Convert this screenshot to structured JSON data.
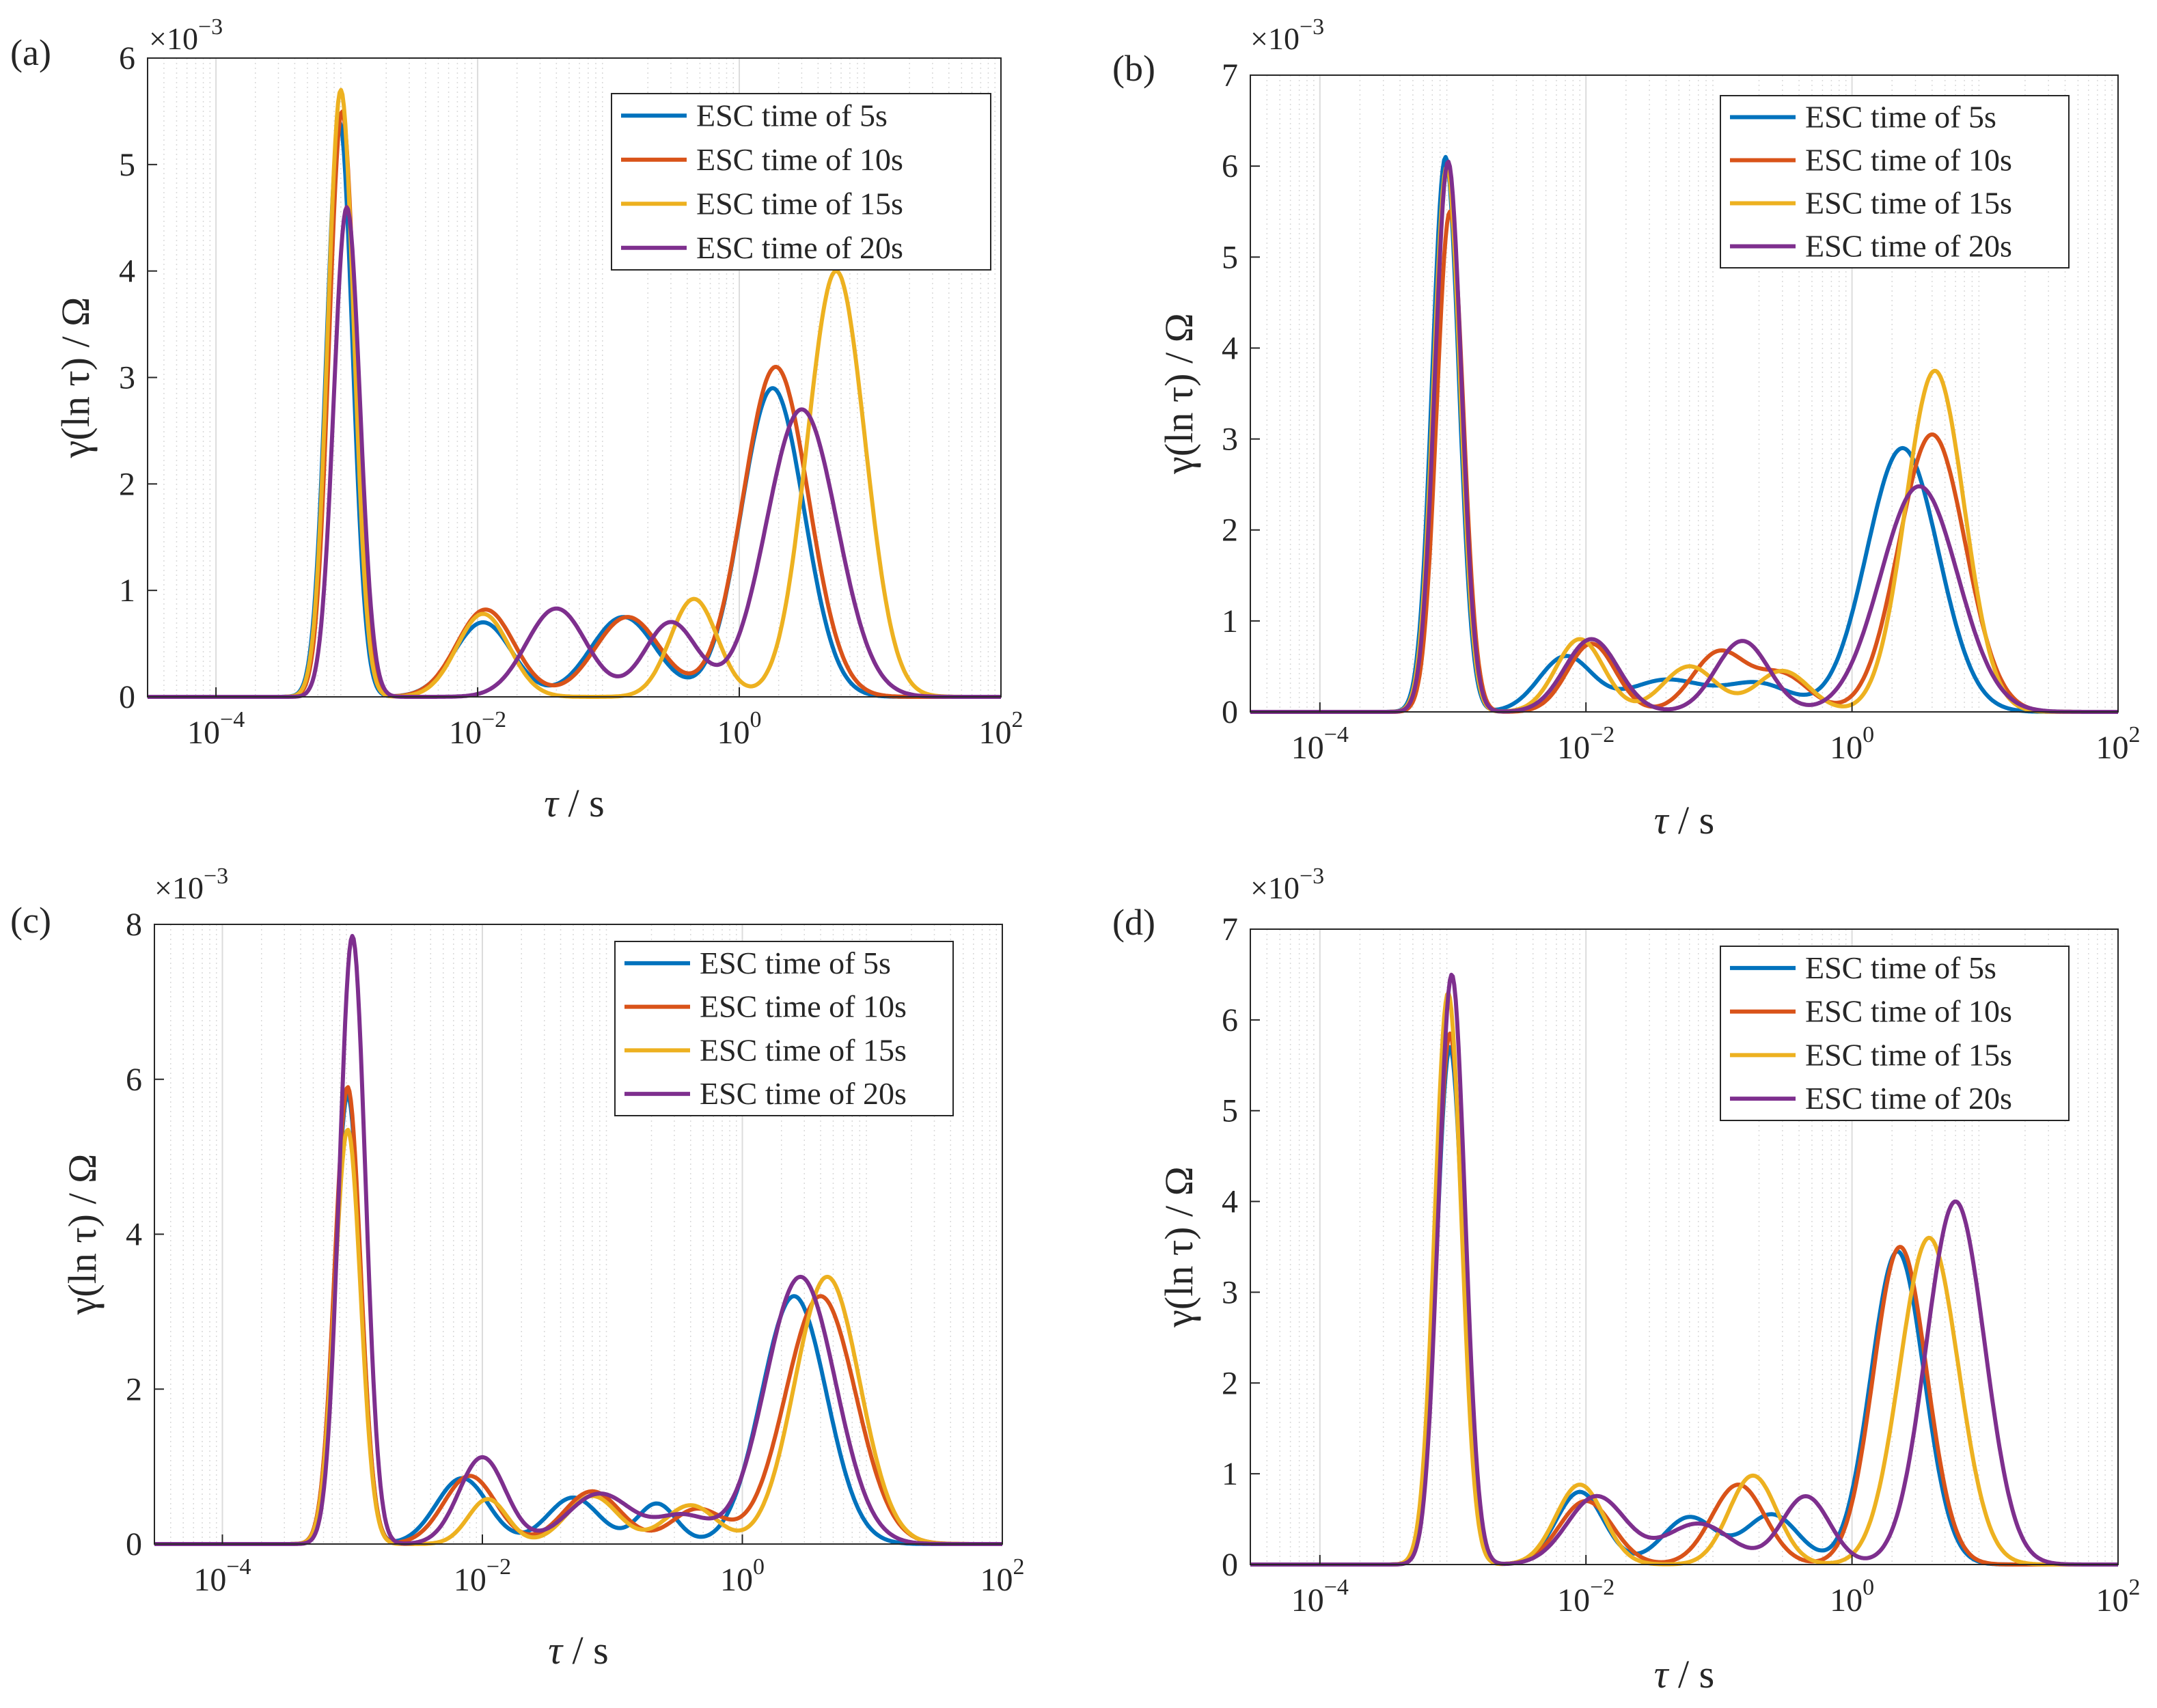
{
  "figure": {
    "panels_order": [
      "a",
      "b",
      "c",
      "d"
    ]
  },
  "chart_data": [
    {
      "panel_label": "(a)",
      "type": "line",
      "xscale": "log",
      "xlim": [
        3e-05,
        100
      ],
      "ylim": [
        0,
        6
      ],
      "yticks": [
        0,
        1,
        2,
        3,
        4,
        5,
        6
      ],
      "ytick_labels": [
        "0",
        "1",
        "2",
        "3",
        "4",
        "5",
        "6"
      ],
      "xticks": [
        0.0001,
        0.01,
        1,
        100
      ],
      "xtick_bases": [
        "10",
        "10",
        "10",
        "10"
      ],
      "xtick_exps": [
        "−4",
        "−2",
        "0",
        "2"
      ],
      "yscale_multiplier": "×10",
      "yscale_exp": "−3",
      "xlabel_var": "τ",
      "xlabel_unit": " / s",
      "ylabel": "γ(ln τ) / Ω",
      "grid": true,
      "legend_position": "top-right",
      "series": [
        {
          "name": "ESC time of 5s",
          "color": "#0072BD",
          "peaks": [
            [
              0.00088,
              5.4,
              0.1
            ],
            [
              0.011,
              0.7,
              0.22
            ],
            [
              0.13,
              0.75,
              0.25
            ],
            [
              1.8,
              2.9,
              0.24
            ]
          ]
        },
        {
          "name": "ESC time of 10s",
          "color": "#D95319",
          "peaks": [
            [
              0.00092,
              5.5,
              0.1
            ],
            [
              0.0115,
              0.82,
              0.22
            ],
            [
              0.14,
              0.75,
              0.25
            ],
            [
              1.9,
              3.1,
              0.25
            ]
          ]
        },
        {
          "name": "ESC time of 15s",
          "color": "#EDB120",
          "peaks": [
            [
              0.0009,
              5.7,
              0.1
            ],
            [
              0.011,
              0.78,
              0.2
            ],
            [
              0.45,
              0.92,
              0.18
            ],
            [
              5.5,
              4.0,
              0.22
            ]
          ]
        },
        {
          "name": "ESC time of 20s",
          "color": "#7E2F8E",
          "peaks": [
            [
              0.001,
              4.6,
              0.1
            ],
            [
              0.04,
              0.83,
              0.23
            ],
            [
              0.3,
              0.7,
              0.2
            ],
            [
              3.0,
              2.7,
              0.27
            ]
          ]
        }
      ]
    },
    {
      "panel_label": "(b)",
      "type": "line",
      "xscale": "log",
      "xlim": [
        3e-05,
        100
      ],
      "ylim": [
        0,
        7
      ],
      "yticks": [
        0,
        1,
        2,
        3,
        4,
        5,
        6,
        7
      ],
      "ytick_labels": [
        "0",
        "1",
        "2",
        "3",
        "4",
        "5",
        "6",
        "7"
      ],
      "xticks": [
        0.0001,
        0.01,
        1,
        100
      ],
      "xtick_bases": [
        "10",
        "10",
        "10",
        "10"
      ],
      "xtick_exps": [
        "−4",
        "−2",
        "0",
        "2"
      ],
      "yscale_multiplier": "×10",
      "yscale_exp": "−3",
      "xlabel_var": "τ",
      "xlabel_unit": " / s",
      "ylabel": "γ(ln τ) / Ω",
      "grid": true,
      "legend_position": "top-right",
      "series": [
        {
          "name": "ESC time of 5s",
          "color": "#0072BD",
          "peaks": [
            [
              0.00088,
              6.1,
              0.1
            ],
            [
              0.007,
              0.6,
              0.2
            ],
            [
              0.04,
              0.35,
              0.3
            ],
            [
              0.2,
              0.3,
              0.25
            ],
            [
              2.4,
              2.9,
              0.27
            ]
          ]
        },
        {
          "name": "ESC time of 10s",
          "color": "#D95319",
          "peaks": [
            [
              0.00095,
              5.5,
              0.1
            ],
            [
              0.011,
              0.75,
              0.18
            ],
            [
              0.1,
              0.65,
              0.2
            ],
            [
              0.3,
              0.4,
              0.2
            ],
            [
              4.0,
              3.05,
              0.25
            ]
          ]
        },
        {
          "name": "ESC time of 15s",
          "color": "#EDB120",
          "peaks": [
            [
              0.0009,
              6.0,
              0.1
            ],
            [
              0.009,
              0.8,
              0.18
            ],
            [
              0.06,
              0.5,
              0.2
            ],
            [
              0.3,
              0.45,
              0.2
            ],
            [
              4.2,
              3.75,
              0.22
            ]
          ]
        },
        {
          "name": "ESC time of 20s",
          "color": "#7E2F8E",
          "peaks": [
            [
              0.00092,
              6.05,
              0.1
            ],
            [
              0.011,
              0.8,
              0.2
            ],
            [
              0.15,
              0.78,
              0.2
            ],
            [
              3.2,
              2.48,
              0.29
            ]
          ]
        }
      ]
    },
    {
      "panel_label": "(c)",
      "type": "line",
      "xscale": "log",
      "xlim": [
        3e-05,
        100
      ],
      "ylim": [
        0,
        8
      ],
      "yticks": [
        0,
        2,
        4,
        6,
        8
      ],
      "ytick_labels": [
        "0",
        "2",
        "4",
        "6",
        "8"
      ],
      "xticks": [
        0.0001,
        0.01,
        1,
        100
      ],
      "xtick_bases": [
        "10",
        "10",
        "10",
        "10"
      ],
      "xtick_exps": [
        "−4",
        "−2",
        "0",
        "2"
      ],
      "yscale_multiplier": "×10",
      "yscale_exp": "−3",
      "xlabel_var": "τ",
      "xlabel_unit": " / s",
      "ylabel": "γ(ln τ) / Ω",
      "grid": true,
      "legend_position": "top-right",
      "series": [
        {
          "name": "ESC time of 5s",
          "color": "#0072BD",
          "peaks": [
            [
              0.00092,
              5.8,
              0.1
            ],
            [
              0.007,
              0.85,
              0.2
            ],
            [
              0.05,
              0.6,
              0.2
            ],
            [
              0.22,
              0.52,
              0.15
            ],
            [
              2.5,
              3.2,
              0.25
            ]
          ]
        },
        {
          "name": "ESC time of 10s",
          "color": "#D95319",
          "peaks": [
            [
              0.00092,
              5.9,
              0.1
            ],
            [
              0.008,
              0.88,
              0.2
            ],
            [
              0.07,
              0.68,
              0.22
            ],
            [
              0.45,
              0.45,
              0.2
            ],
            [
              4.0,
              3.2,
              0.27
            ]
          ]
        },
        {
          "name": "ESC time of 15s",
          "color": "#EDB120",
          "peaks": [
            [
              0.00092,
              5.35,
              0.1
            ],
            [
              0.011,
              0.58,
              0.15
            ],
            [
              0.07,
              0.62,
              0.2
            ],
            [
              0.4,
              0.5,
              0.2
            ],
            [
              4.5,
              3.45,
              0.25
            ]
          ]
        },
        {
          "name": "ESC time of 20s",
          "color": "#7E2F8E",
          "peaks": [
            [
              0.001,
              7.85,
              0.1
            ],
            [
              0.01,
              1.12,
              0.18
            ],
            [
              0.08,
              0.65,
              0.25
            ],
            [
              0.35,
              0.35,
              0.2
            ],
            [
              2.8,
              3.45,
              0.27
            ]
          ]
        }
      ]
    },
    {
      "panel_label": "(d)",
      "type": "line",
      "xscale": "log",
      "xlim": [
        3e-05,
        100
      ],
      "ylim": [
        0,
        7
      ],
      "yticks": [
        0,
        1,
        2,
        3,
        4,
        5,
        6,
        7
      ],
      "ytick_labels": [
        "0",
        "1",
        "2",
        "3",
        "4",
        "5",
        "6",
        "7"
      ],
      "xticks": [
        0.0001,
        0.01,
        1,
        100
      ],
      "xtick_bases": [
        "10",
        "10",
        "10",
        "10"
      ],
      "xtick_exps": [
        "−4",
        "−2",
        "0",
        "2"
      ],
      "yscale_multiplier": "×10",
      "yscale_exp": "−3",
      "xlabel_var": "τ",
      "xlabel_unit": " / s",
      "ylabel": "γ(ln τ) / Ω",
      "grid": true,
      "legend_position": "top-right",
      "series": [
        {
          "name": "ESC time of 5s",
          "color": "#0072BD",
          "peaks": [
            [
              0.00095,
              5.7,
              0.1
            ],
            [
              0.009,
              0.8,
              0.18
            ],
            [
              0.06,
              0.52,
              0.2
            ],
            [
              0.25,
              0.55,
              0.2
            ],
            [
              2.2,
              3.45,
              0.2
            ]
          ]
        },
        {
          "name": "ESC time of 10s",
          "color": "#D95319",
          "peaks": [
            [
              0.00095,
              5.85,
              0.1
            ],
            [
              0.01,
              0.7,
              0.2
            ],
            [
              0.14,
              0.88,
              0.2
            ],
            [
              2.3,
              3.5,
              0.2
            ]
          ]
        },
        {
          "name": "ESC time of 15s",
          "color": "#EDB120",
          "peaks": [
            [
              0.00092,
              6.3,
              0.1
            ],
            [
              0.009,
              0.88,
              0.18
            ],
            [
              0.18,
              0.98,
              0.18
            ],
            [
              3.8,
              3.6,
              0.22
            ]
          ]
        },
        {
          "name": "ESC time of 20s",
          "color": "#7E2F8E",
          "peaks": [
            [
              0.00098,
              6.5,
              0.1
            ],
            [
              0.012,
              0.75,
              0.22
            ],
            [
              0.07,
              0.45,
              0.25
            ],
            [
              0.45,
              0.75,
              0.18
            ],
            [
              6.0,
              4.0,
              0.22
            ]
          ]
        }
      ]
    }
  ]
}
